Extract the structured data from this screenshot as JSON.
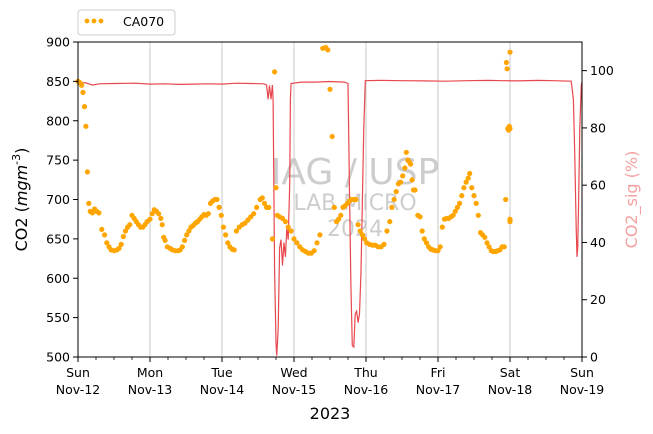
{
  "chart_data": {
    "type": "line",
    "xlabel": "2023",
    "ylabel_left": "CO2 ($mgm^{-3}$)",
    "ylabel_right": "CO2_sig (%)",
    "ylim_left": [
      500,
      900
    ],
    "ylim_right": [
      0,
      110
    ],
    "yticks_left": [
      "500",
      "550",
      "600",
      "650",
      "700",
      "750",
      "800",
      "850",
      "900"
    ],
    "yticks_right": [
      "0",
      "20",
      "40",
      "60",
      "80",
      "100"
    ],
    "xlim_days": [
      0,
      7
    ],
    "x_tick_labels": [
      {
        "day": "Sun",
        "date": "Nov-12"
      },
      {
        "day": "Mon",
        "date": "Nov-13"
      },
      {
        "day": "Tue",
        "date": "Nov-14"
      },
      {
        "day": "Wed",
        "date": "Nov-15"
      },
      {
        "day": "Thu",
        "date": "Nov-16"
      },
      {
        "day": "Fri",
        "date": "Nov-17"
      },
      {
        "day": "Sat",
        "date": "Nov-18"
      },
      {
        "day": "Sun",
        "date": "Nov-19"
      }
    ],
    "grid": "vertical at day ticks",
    "legend": {
      "placement": "top-left, above axes",
      "label": "CA070"
    },
    "watermark": [
      "IAG / USP",
      "LAB MICRO",
      "2024"
    ],
    "colors": {
      "co2": "#ffa500",
      "signal": "#e8484d",
      "right_axis": "#f4a0a0",
      "grid": "#c8c8c8"
    },
    "series": [
      {
        "name": "CA070",
        "axis": "left",
        "style": "dots",
        "points": [
          [
            0.0,
            850
          ],
          [
            0.03,
            848
          ],
          [
            0.05,
            845
          ],
          [
            0.07,
            836
          ],
          [
            0.09,
            818
          ],
          [
            0.11,
            793
          ],
          [
            0.13,
            735
          ],
          [
            0.15,
            695
          ],
          [
            0.17,
            685
          ],
          [
            0.2,
            683
          ],
          [
            0.23,
            688
          ],
          [
            0.26,
            685
          ],
          [
            0.29,
            683
          ],
          [
            0.33,
            662
          ],
          [
            0.37,
            655
          ],
          [
            0.4,
            645
          ],
          [
            0.43,
            640
          ],
          [
            0.46,
            636
          ],
          [
            0.5,
            635
          ],
          [
            0.54,
            636
          ],
          [
            0.57,
            638
          ],
          [
            0.6,
            643
          ],
          [
            0.63,
            653
          ],
          [
            0.66,
            660
          ],
          [
            0.69,
            665
          ],
          [
            0.72,
            668
          ],
          [
            0.75,
            680
          ],
          [
            0.78,
            676
          ],
          [
            0.81,
            672
          ],
          [
            0.84,
            668
          ],
          [
            0.87,
            665
          ],
          [
            0.9,
            665
          ],
          [
            0.93,
            668
          ],
          [
            0.96,
            672
          ],
          [
            1.0,
            675
          ],
          [
            1.03,
            682
          ],
          [
            1.06,
            687
          ],
          [
            1.09,
            685
          ],
          [
            1.12,
            682
          ],
          [
            1.15,
            676
          ],
          [
            1.17,
            668
          ],
          [
            1.19,
            652
          ],
          [
            1.21,
            648
          ],
          [
            1.24,
            640
          ],
          [
            1.28,
            638
          ],
          [
            1.31,
            636
          ],
          [
            1.35,
            635
          ],
          [
            1.39,
            635
          ],
          [
            1.42,
            636
          ],
          [
            1.45,
            640
          ],
          [
            1.48,
            648
          ],
          [
            1.51,
            655
          ],
          [
            1.54,
            660
          ],
          [
            1.57,
            665
          ],
          [
            1.6,
            667
          ],
          [
            1.63,
            670
          ],
          [
            1.66,
            672
          ],
          [
            1.69,
            675
          ],
          [
            1.72,
            678
          ],
          [
            1.75,
            681
          ],
          [
            1.78,
            680
          ],
          [
            1.81,
            682
          ],
          [
            1.84,
            695
          ],
          [
            1.87,
            698
          ],
          [
            1.9,
            700
          ],
          [
            1.93,
            700
          ],
          [
            1.96,
            690
          ],
          [
            1.99,
            680
          ],
          [
            2.02,
            665
          ],
          [
            2.05,
            655
          ],
          [
            2.08,
            645
          ],
          [
            2.11,
            640
          ],
          [
            2.14,
            637
          ],
          [
            2.17,
            636
          ],
          [
            2.2,
            660
          ],
          [
            2.24,
            665
          ],
          [
            2.28,
            668
          ],
          [
            2.32,
            670
          ],
          [
            2.36,
            674
          ],
          [
            2.4,
            678
          ],
          [
            2.44,
            682
          ],
          [
            2.48,
            690
          ],
          [
            2.53,
            700
          ],
          [
            2.56,
            702
          ],
          [
            2.59,
            695
          ],
          [
            2.62,
            690
          ],
          [
            2.65,
            690
          ],
          [
            2.7,
            650
          ],
          [
            2.73,
            862
          ],
          [
            2.75,
            715
          ],
          [
            2.77,
            680
          ],
          [
            2.8,
            678
          ],
          [
            2.84,
            676
          ],
          [
            2.88,
            672
          ],
          [
            2.92,
            665
          ],
          [
            2.96,
            660
          ],
          [
            3.0,
            650
          ],
          [
            3.04,
            645
          ],
          [
            3.08,
            640
          ],
          [
            3.12,
            636
          ],
          [
            3.16,
            634
          ],
          [
            3.2,
            632
          ],
          [
            3.24,
            632
          ],
          [
            3.28,
            635
          ],
          [
            3.32,
            645
          ],
          [
            3.36,
            655
          ],
          [
            3.4,
            892
          ],
          [
            3.44,
            893
          ],
          [
            3.47,
            890
          ],
          [
            3.5,
            840
          ],
          [
            3.53,
            780
          ],
          [
            3.56,
            690
          ],
          [
            3.59,
            672
          ],
          [
            3.62,
            675
          ],
          [
            3.65,
            680
          ],
          [
            3.68,
            690
          ],
          [
            3.71,
            692
          ],
          [
            3.74,
            695
          ],
          [
            3.77,
            698
          ],
          [
            3.8,
            700
          ],
          [
            3.83,
            700
          ],
          [
            3.86,
            700
          ],
          [
            3.89,
            668
          ],
          [
            3.92,
            660
          ],
          [
            3.95,
            655
          ],
          [
            3.98,
            650
          ],
          [
            4.01,
            645
          ],
          [
            4.05,
            643
          ],
          [
            4.09,
            642
          ],
          [
            4.13,
            642
          ],
          [
            4.17,
            640
          ],
          [
            4.21,
            640
          ],
          [
            4.25,
            643
          ],
          [
            4.29,
            660
          ],
          [
            4.33,
            672
          ],
          [
            4.36,
            690
          ],
          [
            4.39,
            700
          ],
          [
            4.42,
            710
          ],
          [
            4.45,
            720
          ],
          [
            4.48,
            722
          ],
          [
            4.51,
            730
          ],
          [
            4.54,
            740
          ],
          [
            4.56,
            760
          ],
          [
            4.58,
            750
          ],
          [
            4.6,
            748
          ],
          [
            4.62,
            745
          ],
          [
            4.64,
            725
          ],
          [
            4.66,
            712
          ],
          [
            4.68,
            712
          ],
          [
            4.72,
            680
          ],
          [
            4.75,
            678
          ],
          [
            4.78,
            660
          ],
          [
            4.81,
            650
          ],
          [
            4.84,
            645
          ],
          [
            4.87,
            640
          ],
          [
            4.9,
            637
          ],
          [
            4.93,
            636
          ],
          [
            4.96,
            635
          ],
          [
            5.0,
            635
          ],
          [
            5.03,
            640
          ],
          [
            5.06,
            665
          ],
          [
            5.09,
            675
          ],
          [
            5.12,
            676
          ],
          [
            5.15,
            676
          ],
          [
            5.18,
            678
          ],
          [
            5.21,
            680
          ],
          [
            5.24,
            685
          ],
          [
            5.27,
            690
          ],
          [
            5.3,
            695
          ],
          [
            5.33,
            705
          ],
          [
            5.36,
            715
          ],
          [
            5.39,
            722
          ],
          [
            5.42,
            727
          ],
          [
            5.44,
            733
          ],
          [
            5.47,
            715
          ],
          [
            5.5,
            705
          ],
          [
            5.53,
            695
          ],
          [
            5.56,
            680
          ],
          [
            5.59,
            658
          ],
          [
            5.62,
            655
          ],
          [
            5.65,
            652
          ],
          [
            5.68,
            645
          ],
          [
            5.71,
            640
          ],
          [
            5.74,
            635
          ],
          [
            5.77,
            634
          ],
          [
            5.8,
            634
          ],
          [
            5.83,
            635
          ],
          [
            5.86,
            636
          ],
          [
            5.89,
            640
          ],
          [
            5.92,
            640
          ],
          [
            5.94,
            700
          ],
          [
            5.95,
            874
          ],
          [
            5.96,
            866
          ],
          [
            5.97,
            790
          ],
          [
            5.98,
            788
          ],
          [
            5.99,
            793
          ],
          [
            6.0,
            887
          ],
          [
            6.0,
            790
          ],
          [
            6.0,
            672
          ],
          [
            6.0,
            675
          ]
        ]
      },
      {
        "name": "",
        "axis": "right",
        "style": "line",
        "points": [
          [
            0.0,
            95.5
          ],
          [
            0.1,
            95.8
          ],
          [
            0.2,
            95.0
          ],
          [
            0.3,
            95.4
          ],
          [
            0.5,
            95.5
          ],
          [
            0.8,
            95.6
          ],
          [
            1.0,
            95.3
          ],
          [
            1.2,
            95.4
          ],
          [
            1.4,
            95.2
          ],
          [
            1.6,
            95.3
          ],
          [
            1.8,
            95.4
          ],
          [
            2.0,
            95.3
          ],
          [
            2.2,
            95.6
          ],
          [
            2.4,
            95.5
          ],
          [
            2.58,
            95.4
          ],
          [
            2.62,
            95.0
          ],
          [
            2.64,
            90.0
          ],
          [
            2.66,
            94.8
          ],
          [
            2.68,
            90.0
          ],
          [
            2.7,
            95.0
          ],
          [
            2.71,
            90.0
          ],
          [
            2.73,
            30.0
          ],
          [
            2.75,
            5.0
          ],
          [
            2.76,
            0.5
          ],
          [
            2.78,
            10.0
          ],
          [
            2.8,
            38.0
          ],
          [
            2.82,
            41.0
          ],
          [
            2.84,
            32.0
          ],
          [
            2.86,
            40.0
          ],
          [
            2.88,
            35.0
          ],
          [
            2.9,
            45.0
          ],
          [
            2.92,
            41.0
          ],
          [
            2.94,
            60.0
          ],
          [
            2.95,
            90.0
          ],
          [
            2.96,
            95.5
          ],
          [
            3.1,
            96.0
          ],
          [
            3.3,
            96.0
          ],
          [
            3.5,
            96.2
          ],
          [
            3.7,
            96.0
          ],
          [
            3.75,
            95.5
          ],
          [
            3.77,
            60.0
          ],
          [
            3.79,
            25.0
          ],
          [
            3.81,
            4.0
          ],
          [
            3.83,
            3.5
          ],
          [
            3.85,
            15.0
          ],
          [
            3.87,
            16.0
          ],
          [
            3.89,
            12.0
          ],
          [
            3.91,
            15.0
          ],
          [
            3.93,
            30.0
          ],
          [
            3.95,
            55.0
          ],
          [
            3.97,
            80.0
          ],
          [
            3.99,
            96.5
          ],
          [
            4.2,
            96.6
          ],
          [
            4.5,
            96.5
          ],
          [
            4.8,
            96.4
          ],
          [
            5.1,
            96.3
          ],
          [
            5.4,
            96.5
          ],
          [
            5.7,
            96.6
          ],
          [
            5.9,
            96.5
          ],
          [
            6.1,
            96.4
          ],
          [
            6.4,
            96.6
          ],
          [
            6.6,
            96.5
          ],
          [
            6.85,
            96.3
          ],
          [
            6.88,
            90.0
          ],
          [
            6.9,
            70.0
          ],
          [
            6.92,
            45.0
          ],
          [
            6.93,
            35.0
          ],
          [
            6.94,
            38.0
          ],
          [
            6.95,
            50.0
          ],
          [
            6.96,
            65.0
          ],
          [
            6.97,
            80.0
          ],
          [
            6.98,
            88.0
          ],
          [
            6.99,
            95.0
          ],
          [
            7.0,
            96.0
          ]
        ]
      }
    ]
  }
}
